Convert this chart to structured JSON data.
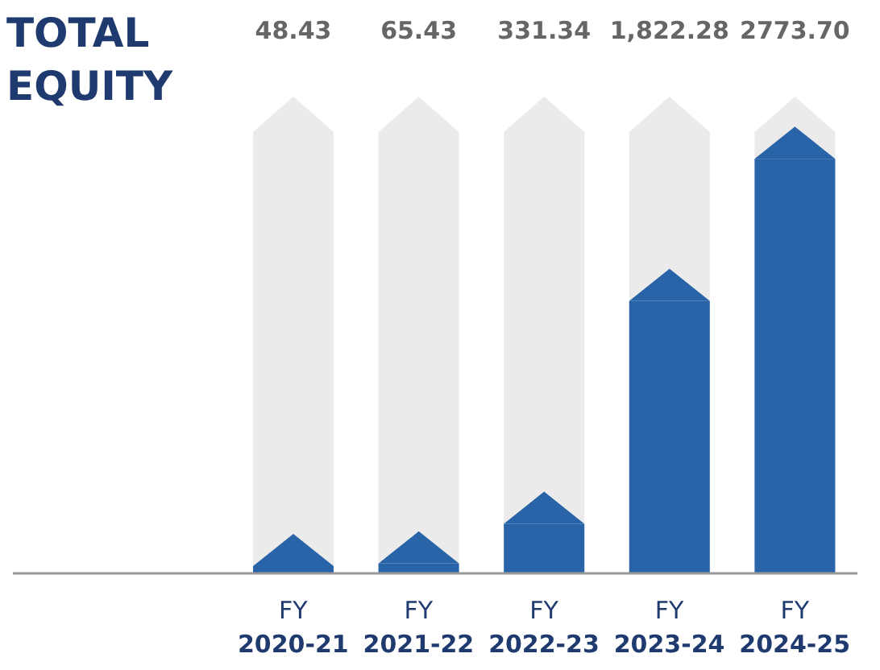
{
  "chart_data": {
    "type": "bar",
    "title": "TOTAL EQUITY",
    "categories": [
      "FY 2020-21",
      "FY 2021-22",
      "FY 2022-23",
      "FY 2023-24",
      "FY 2024-25"
    ],
    "values": [
      48.43,
      65.43,
      331.34,
      1822.28,
      2773.7
    ],
    "value_labels": [
      "48.43",
      "65.43",
      "331.34",
      "1,822.28",
      "2773.70"
    ],
    "color": "#2a64a8"
  }
}
